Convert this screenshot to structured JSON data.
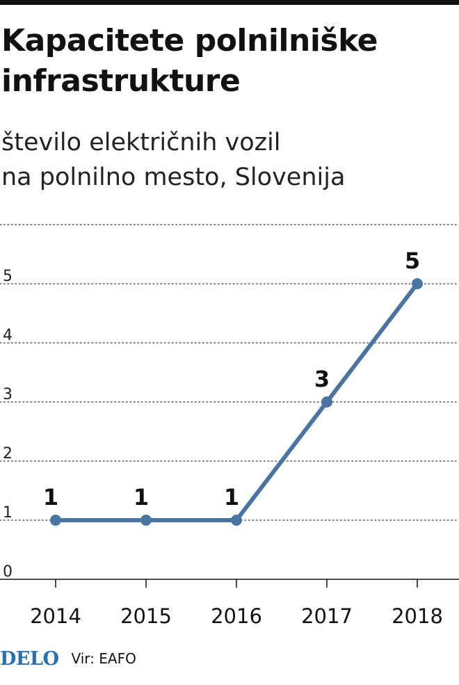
{
  "header": {
    "title": "Kapacitete polnilniške infrastrukture",
    "subtitle_line1": "število električnih vozil",
    "subtitle_line2": "na polnilno mesto, Slovenija"
  },
  "footer": {
    "logo": "DELO",
    "source": "Vir: EAFO"
  },
  "colors": {
    "line": "#4a74a2",
    "logo": "#2a6fb0",
    "grid": "#555555"
  },
  "chart_data": {
    "type": "line",
    "title": "Kapacitete polnilniške infrastrukture",
    "subtitle": "število električnih vozil na polnilno mesto, Slovenija",
    "xlabel": "",
    "ylabel": "",
    "x": [
      "2014",
      "2015",
      "2016",
      "2017",
      "2018"
    ],
    "series": [
      {
        "values": [
          1,
          1,
          1,
          3,
          5
        ]
      }
    ],
    "data_labels": [
      "1",
      "1",
      "1",
      "3",
      "5"
    ],
    "ylim": [
      0,
      6
    ],
    "yticks": [
      "0",
      "1",
      "2",
      "3",
      "4",
      "5"
    ],
    "grid": "horizontal dotted",
    "legend": "none"
  }
}
